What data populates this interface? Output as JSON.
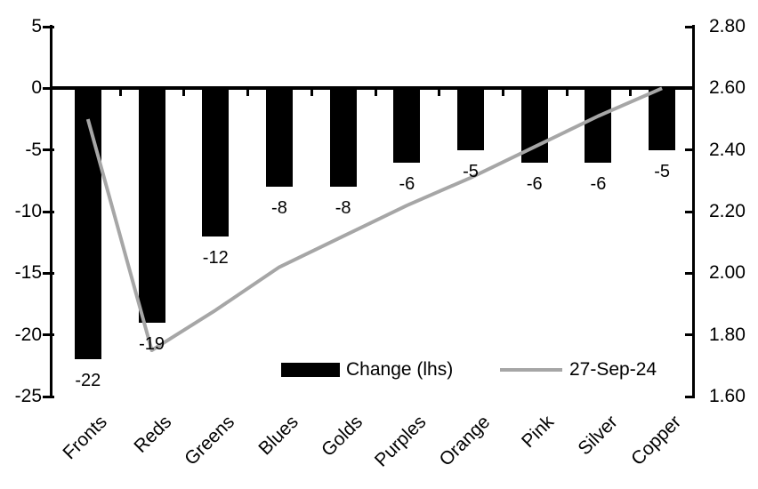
{
  "chart_data": {
    "type": "combo: bar + line",
    "title": "",
    "categories": [
      "Fronts",
      "Reds",
      "Greens",
      "Blues",
      "Golds",
      "Purples",
      "Orange",
      "Pink",
      "Silver",
      "Copper"
    ],
    "series": [
      {
        "name": "Change (lhs)",
        "type": "bar",
        "axis": "left",
        "color": "#000000",
        "values": [
          -22,
          -19,
          -12,
          -8,
          -8,
          -6,
          -5,
          -6,
          -6,
          -5
        ],
        "data_labels": [
          "-22",
          "-19",
          "-12",
          "-8",
          "-8",
          "-6",
          "-5",
          "-6",
          "-6",
          "-5"
        ]
      },
      {
        "name": "27-Sep-24",
        "type": "line",
        "axis": "right",
        "color": "#a6a6a6",
        "values": [
          2.5,
          1.75,
          1.88,
          2.02,
          2.12,
          2.22,
          2.31,
          2.41,
          2.51,
          2.6
        ]
      }
    ],
    "left_axis": {
      "min": -25,
      "max": 5,
      "step": 5,
      "tick_labels": [
        "5",
        "0",
        "-5",
        "-10",
        "-15",
        "-20",
        "-25"
      ],
      "tick_values": [
        5,
        0,
        -5,
        -10,
        -15,
        -20,
        -25
      ]
    },
    "right_axis": {
      "min": 1.6,
      "max": 2.8,
      "step": 0.2,
      "tick_labels": [
        "2.80",
        "2.60",
        "2.40",
        "2.20",
        "2.00",
        "1.80",
        "1.60"
      ],
      "tick_values": [
        2.8,
        2.6,
        2.4,
        2.2,
        2.0,
        1.8,
        1.6
      ]
    },
    "grid": false,
    "legend_position": "bottom-inside",
    "background": "#ffffff",
    "axis_color": "#000000"
  }
}
